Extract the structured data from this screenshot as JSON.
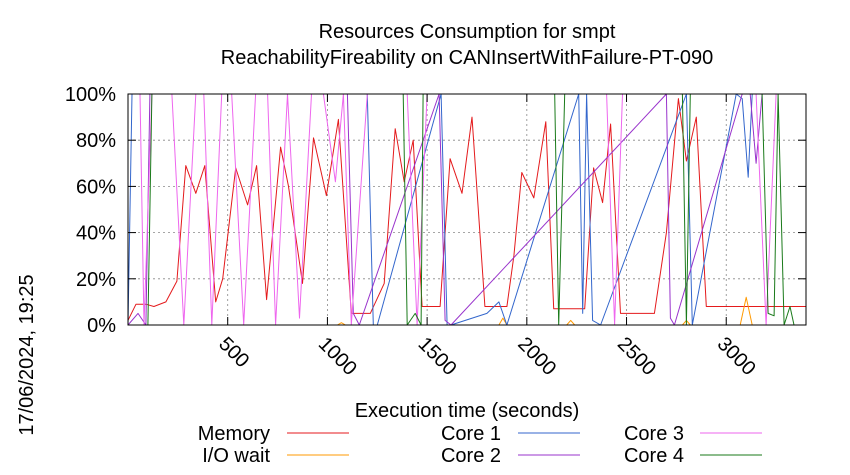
{
  "chart_data": {
    "type": "line",
    "title": "Resources Consumption for smpt",
    "subtitle": "ReachabilityFireability on CANInsertWithFailure-PT-090",
    "xlabel": "Execution time (seconds)",
    "ylabel": "",
    "xlim": [
      0,
      3400
    ],
    "ylim": [
      0,
      100
    ],
    "x_ticks": [
      500,
      1000,
      1500,
      2000,
      2500,
      3000
    ],
    "x_tick_labels": [
      "500",
      "1000",
      "1500",
      "2000",
      "2500",
      "3000"
    ],
    "y_ticks": [
      0,
      20,
      40,
      60,
      80,
      100
    ],
    "y_tick_labels": [
      "0%",
      "20%",
      "40%",
      "60%",
      "80%",
      "100%"
    ],
    "grid": true,
    "legend_position": "bottom",
    "timestamp": "17/06/2024, 19:25",
    "series": [
      {
        "name": "Memory",
        "color": "#e41a1c",
        "x": [
          0,
          40,
          90,
          130,
          190,
          245,
          290,
          340,
          385,
          440,
          475,
          540,
          600,
          645,
          695,
          765,
          805,
          875,
          930,
          995,
          1055,
          1120,
          1180,
          1215,
          1285,
          1340,
          1385,
          1430,
          1475,
          1520,
          1565,
          1615,
          1675,
          1725,
          1790,
          1850,
          1900,
          1935,
          1975,
          2035,
          2095,
          2135,
          2200,
          2250,
          2290,
          2335,
          2380,
          2420,
          2470,
          2530,
          2560,
          2640,
          2700,
          2760,
          2800,
          2850,
          2900,
          2960,
          3010,
          3060,
          3110,
          3160,
          3210,
          3260,
          3330,
          3400
        ],
        "y": [
          2,
          9,
          9,
          8,
          10,
          19,
          69,
          57,
          69,
          10,
          20,
          68,
          52,
          69,
          11,
          77,
          60,
          18,
          81,
          56,
          89,
          5,
          5,
          5,
          18,
          85,
          62,
          80,
          8,
          8,
          8,
          72,
          57,
          90,
          8,
          8,
          8,
          30,
          66,
          55,
          88,
          7,
          7,
          7,
          7,
          68,
          53,
          87,
          5,
          5,
          5,
          5,
          40,
          98,
          71,
          90,
          8,
          8,
          8,
          8,
          8,
          8,
          8,
          8,
          8,
          8
        ]
      },
      {
        "name": "I/O wait",
        "color": "#ff9900",
        "x": [
          0,
          200,
          1050,
          1070,
          1090,
          1860,
          1880,
          1900,
          2200,
          2220,
          2240,
          2780,
          2800,
          2820,
          3070,
          3100,
          3130,
          3400
        ],
        "y": [
          0,
          0,
          0,
          1,
          0,
          0,
          3,
          0,
          0,
          2,
          0,
          0,
          2,
          0,
          0,
          12,
          0,
          0
        ]
      },
      {
        "name": "Core 1",
        "color": "#3366cc",
        "x": [
          0,
          20,
          40,
          80,
          120,
          1200,
          1230,
          1250,
          1570,
          1600,
          1620,
          1800,
          1860,
          1900,
          2260,
          2280,
          2300,
          2330,
          2370,
          2800,
          2830,
          3050,
          3080,
          3110,
          3130,
          3150,
          3180,
          3200,
          3400
        ],
        "y": [
          0,
          100,
          100,
          100,
          100,
          100,
          0,
          0,
          100,
          0,
          0,
          5,
          10,
          0,
          100,
          5,
          100,
          2,
          0,
          100,
          0,
          100,
          98,
          64,
          100,
          100,
          100,
          100,
          100
        ]
      },
      {
        "name": "Core 2",
        "color": "#9933cc",
        "x": [
          0,
          50,
          90,
          110,
          1100,
          1130,
          1160,
          1560,
          1590,
          1620,
          2700,
          2720,
          2740,
          3080,
          3120,
          3150,
          3180,
          3210,
          3400
        ],
        "y": [
          0,
          5,
          0,
          100,
          100,
          5,
          0,
          100,
          2,
          0,
          100,
          3,
          0,
          100,
          100,
          70,
          100,
          100,
          100
        ]
      },
      {
        "name": "Core 3",
        "color": "#ee66ee",
        "x": [
          0,
          60,
          80,
          120,
          180,
          220,
          280,
          340,
          380,
          420,
          470,
          520,
          580,
          640,
          700,
          740,
          800,
          860,
          920,
          980,
          1040,
          1080,
          1120,
          1200,
          1400,
          1450,
          1500,
          1550,
          1600,
          2400,
          2440,
          2480,
          2520,
          3100,
          3150,
          3200,
          3250,
          3300,
          3340,
          3400
        ],
        "y": [
          100,
          100,
          0,
          100,
          100,
          100,
          0,
          100,
          100,
          0,
          100,
          100,
          0,
          100,
          100,
          0,
          100,
          3,
          100,
          100,
          62,
          100,
          0,
          100,
          100,
          0,
          100,
          100,
          100,
          100,
          0,
          100,
          100,
          100,
          100,
          0,
          100,
          100,
          100,
          100
        ]
      },
      {
        "name": "Core 4",
        "color": "#1a7a1a",
        "x": [
          0,
          100,
          120,
          130,
          150,
          1380,
          1400,
          1440,
          1470,
          1480,
          2140,
          2160,
          2190,
          2210,
          2780,
          2800,
          2820,
          3180,
          3210,
          3240,
          3260,
          3290,
          3320,
          3340,
          3370,
          3400
        ],
        "y": [
          0,
          0,
          100,
          100,
          100,
          100,
          0,
          5,
          0,
          100,
          100,
          0,
          100,
          100,
          100,
          0,
          100,
          100,
          5,
          4,
          100,
          0,
          8,
          0,
          0,
          0
        ]
      }
    ]
  }
}
